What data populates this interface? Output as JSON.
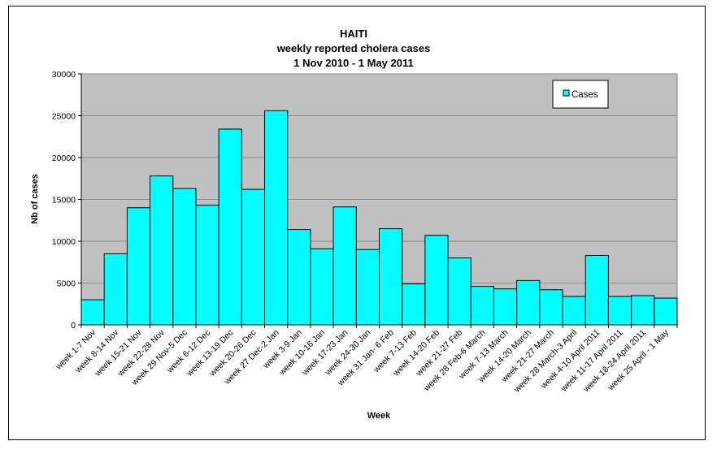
{
  "chart_data": {
    "type": "bar",
    "title": [
      "HAITI",
      "weekly reported cholera cases",
      "1 Nov 2010 - 1 May 2011"
    ],
    "xlabel": "Week",
    "ylabel": "Nb of cases",
    "ylim": [
      0,
      30000
    ],
    "yticks": [
      0,
      5000,
      10000,
      15000,
      20000,
      25000,
      30000
    ],
    "grid": true,
    "legend_position": "top-right",
    "categories": [
      "week 1-7 Nov",
      "week 8-14 Nov",
      "week 15-21 Nov",
      "week 22-28 Nov",
      "week 29 Nov-5 Dec",
      "week 6-12 Dec",
      "week 13-19 Dec",
      "week 20-26 Dec",
      "week 27 Dec-2 Jan",
      "week 3-9 Jan",
      "week 10-16 Jan",
      "week 17-23 Jan",
      "week 24-30 Jan",
      "week 31 Jan- 6 Feb",
      "week 7-13 Feb",
      "week 14-20 Feb",
      "week 21-27 Feb",
      "week 28 Feb-6 March",
      "week 7-13 March",
      "week 14-20 March",
      "week 21-27 March",
      "week 28 March-3 April",
      "week 4-10 April 2011",
      "week 11-17 April 2011",
      "week 18-24 April 2011",
      "week 25 April - 1 May"
    ],
    "series": [
      {
        "name": "Cases",
        "color": "#00ffff",
        "values": [
          3000,
          8500,
          14000,
          17800,
          16300,
          14300,
          23400,
          16200,
          25600,
          11400,
          9100,
          14100,
          9000,
          11500,
          4900,
          10700,
          8000,
          4600,
          4300,
          5300,
          4200,
          3400,
          8300,
          3400,
          3500,
          3200
        ]
      }
    ],
    "colors": {
      "plot_background": "#c0c0c0",
      "bar_fill": "#00ffff",
      "gridline": "#8c8c8c"
    }
  }
}
